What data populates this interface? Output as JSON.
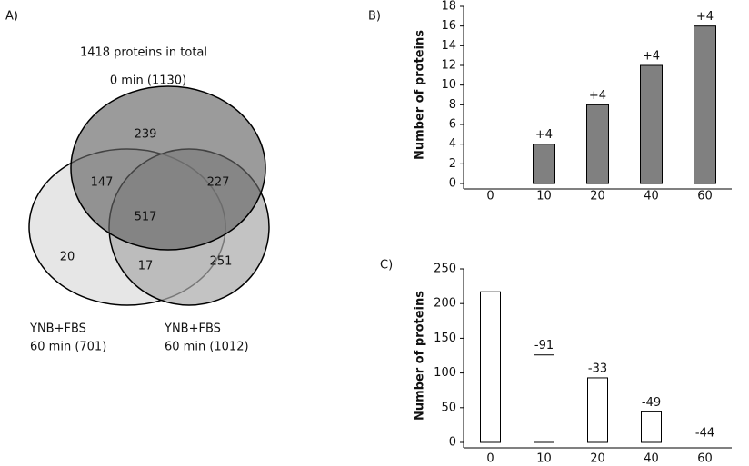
{
  "chart_data": [
    {
      "type": "venn",
      "panel": "A)",
      "title": "1418 proteins in total",
      "sets": [
        {
          "name": [
            "0 min (1130)"
          ]
        },
        {
          "name": [
            "YNB+FBS",
            "60 min (701)"
          ]
        },
        {
          "name": [
            "YNB+FBS",
            "60 min (1012)"
          ]
        }
      ],
      "regions": [
        239,
        147,
        227,
        517,
        20,
        17,
        251
      ]
    },
    {
      "type": "bar",
      "panel": "B)",
      "ylabel": "Number of proteins",
      "categories": [
        "0",
        "10",
        "20",
        "40",
        "60"
      ],
      "values": [
        0,
        4,
        8,
        12,
        16
      ],
      "annotations": [
        null,
        "+4",
        "+4",
        "+4",
        "+4"
      ],
      "color": "#808080",
      "ylim": [
        0,
        18
      ],
      "yticks": [
        0,
        2,
        4,
        6,
        8,
        10,
        12,
        14,
        16,
        18
      ]
    },
    {
      "type": "bar",
      "panel": "C)",
      "ylabel": "Number of proteins",
      "categories": [
        "0",
        "10",
        "20",
        "40",
        "60"
      ],
      "values": [
        217,
        126,
        93,
        44,
        0
      ],
      "annotations": [
        null,
        "-91",
        "-33",
        "-49",
        "-44"
      ],
      "color": "#ffffff",
      "ylim": [
        0,
        250
      ],
      "yticks": [
        0,
        50,
        100,
        150,
        200,
        250
      ]
    }
  ]
}
